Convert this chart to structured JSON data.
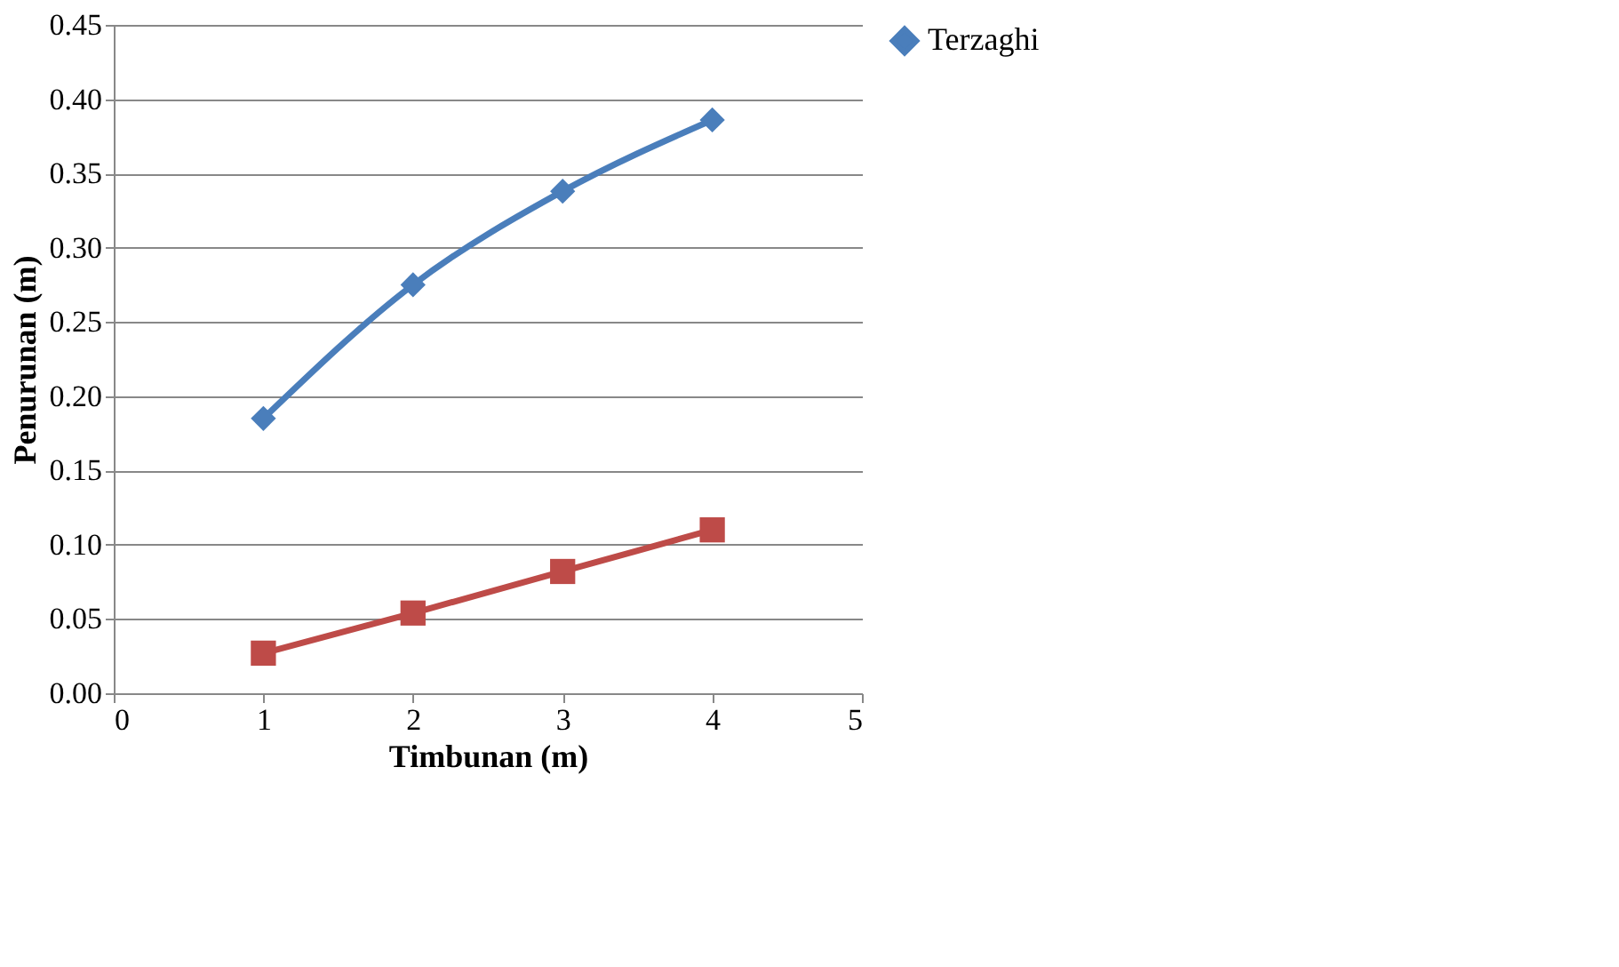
{
  "chart_data": {
    "type": "line",
    "xlabel": "Timbunan (m)",
    "ylabel": "Penurunan (m)",
    "x": [
      1,
      2,
      3,
      4
    ],
    "series": [
      {
        "name": "Terzaghi",
        "color": "#4a7ebb",
        "marker": "diamond",
        "values": [
          0.185,
          0.275,
          0.338,
          0.386
        ]
      },
      {
        "color": "#be4b48",
        "marker": "square",
        "values": [
          0.027,
          0.054,
          0.082,
          0.11
        ]
      }
    ],
    "xlim": [
      0,
      5
    ],
    "xticks": [
      0,
      1,
      2,
      3,
      4,
      5
    ],
    "ylim": [
      0,
      0.45
    ],
    "yticks": [
      {
        "value": 0,
        "label": "0.00"
      },
      {
        "value": 0.05,
        "label": "0.05"
      },
      {
        "value": 0.1,
        "label": "0.10"
      },
      {
        "value": 0.15,
        "label": "0.15"
      },
      {
        "value": 0.2,
        "label": "0.20"
      },
      {
        "value": 0.25,
        "label": "0.25"
      },
      {
        "value": 0.3,
        "label": "0.30"
      },
      {
        "value": 0.35,
        "label": "0.35"
      },
      {
        "value": 0.4,
        "label": "0.40"
      },
      {
        "value": 0.45,
        "label": "0.45"
      }
    ],
    "grid": "y",
    "legend": "right",
    "line_style": "solid"
  }
}
